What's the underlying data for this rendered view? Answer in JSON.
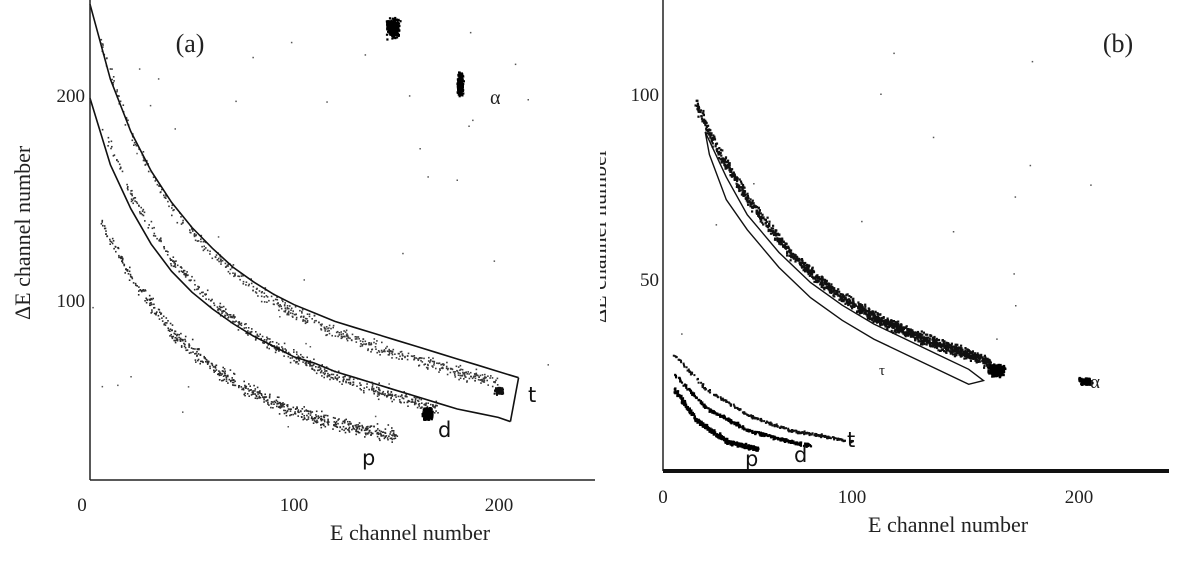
{
  "chart_data": [
    {
      "type": "scatter",
      "panel_label": "(a)",
      "xlabel": "E channel number",
      "ylabel": "ΔE channel number",
      "xlim": [
        0,
        245
      ],
      "ylim": [
        15,
        245
      ],
      "xticks": [
        0,
        100,
        200
      ],
      "yticks": [
        100,
        200
      ],
      "gate_curves": {
        "upper": [
          [
            0,
            243
          ],
          [
            10,
            207
          ],
          [
            20,
            182
          ],
          [
            30,
            163
          ],
          [
            40,
            148
          ],
          [
            50,
            136
          ],
          [
            60,
            126
          ],
          [
            70,
            117
          ],
          [
            80,
            110
          ],
          [
            90,
            104
          ],
          [
            100,
            99
          ],
          [
            110,
            95
          ],
          [
            120,
            91
          ],
          [
            130,
            88
          ],
          [
            140,
            85
          ],
          [
            150,
            82
          ],
          [
            160,
            79
          ],
          [
            170,
            76
          ],
          [
            180,
            73
          ],
          [
            190,
            70
          ],
          [
            200,
            67
          ],
          [
            210,
            64
          ]
        ],
        "lower": [
          [
            0,
            198
          ],
          [
            10,
            166
          ],
          [
            20,
            145
          ],
          [
            30,
            128
          ],
          [
            40,
            115
          ],
          [
            50,
            105
          ],
          [
            60,
            97
          ],
          [
            70,
            90
          ],
          [
            80,
            84
          ],
          [
            90,
            79
          ],
          [
            100,
            74
          ],
          [
            110,
            71
          ],
          [
            120,
            67
          ],
          [
            130,
            64
          ],
          [
            140,
            61
          ],
          [
            150,
            58
          ],
          [
            160,
            55
          ],
          [
            170,
            52
          ],
          [
            180,
            49
          ],
          [
            190,
            47
          ],
          [
            200,
            45
          ],
          [
            206,
            43
          ]
        ]
      },
      "series": [
        {
          "name": "t",
          "band": [
            [
              5,
              225
            ],
            [
              20,
              180
            ],
            [
              40,
              145
            ],
            [
              60,
              123
            ],
            [
              80,
              107
            ],
            [
              100,
              95
            ],
            [
              120,
              86
            ],
            [
              150,
              76
            ],
            [
              180,
              67
            ],
            [
              200,
              62
            ]
          ],
          "cluster": {
            "x": 200,
            "y": 58
          }
        },
        {
          "name": "d",
          "band": [
            [
              5,
              185
            ],
            [
              20,
              152
            ],
            [
              40,
              120
            ],
            [
              60,
              100
            ],
            [
              80,
              85
            ],
            [
              100,
              74
            ],
            [
              120,
              65
            ],
            [
              150,
              55
            ],
            [
              170,
              49
            ]
          ],
          "cluster": {
            "x": 165,
            "y": 47
          }
        },
        {
          "name": "p",
          "band": [
            [
              5,
              140
            ],
            [
              20,
              112
            ],
            [
              40,
              86
            ],
            [
              60,
              69
            ],
            [
              80,
              57
            ],
            [
              100,
              48
            ],
            [
              120,
              42
            ],
            [
              140,
              38
            ],
            [
              150,
              36
            ]
          ]
        },
        {
          "name": "α",
          "clusters": [
            {
              "x": 148,
              "y": 232
            },
            {
              "x": 181,
              "y": 205
            }
          ]
        }
      ],
      "labels": {
        "t": "t",
        "d": "d",
        "p": "p",
        "alpha": "α"
      }
    },
    {
      "type": "scatter",
      "panel_label": "(b)",
      "xlabel": "E channel number",
      "ylabel": "ΔE channel number",
      "xlim": [
        0,
        240
      ],
      "ylim": [
        0,
        125
      ],
      "xticks": [
        0,
        100,
        200
      ],
      "yticks": [
        50,
        100
      ],
      "gate_curve": [
        [
          20,
          90
        ],
        [
          30,
          78
        ],
        [
          40,
          68
        ],
        [
          55,
          58
        ],
        [
          70,
          50
        ],
        [
          85,
          44
        ],
        [
          100,
          39
        ],
        [
          115,
          35
        ],
        [
          130,
          31
        ],
        [
          145,
          27
        ],
        [
          152,
          24
        ],
        [
          145,
          23
        ],
        [
          130,
          27
        ],
        [
          115,
          31
        ],
        [
          100,
          35
        ],
        [
          85,
          40
        ],
        [
          70,
          46
        ],
        [
          55,
          54
        ],
        [
          40,
          64
        ],
        [
          30,
          72
        ],
        [
          22,
          84
        ],
        [
          20,
          90
        ]
      ],
      "series": [
        {
          "name": "t",
          "band": [
            [
              15,
              98
            ],
            [
              25,
              86
            ],
            [
              40,
              72
            ],
            [
              60,
              58
            ],
            [
              80,
              48
            ],
            [
              100,
              41
            ],
            [
              120,
              36
            ],
            [
              140,
              32
            ],
            [
              155,
              29
            ]
          ],
          "cluster": {
            "x": 158,
            "y": 27
          },
          "low_band": [
            [
              5,
              31
            ],
            [
              20,
              22
            ],
            [
              40,
              15
            ],
            [
              60,
              11
            ],
            [
              80,
              9
            ],
            [
              90,
              8
            ]
          ]
        },
        {
          "name": "d",
          "low_band": [
            [
              5,
              26
            ],
            [
              20,
              17
            ],
            [
              40,
              11
            ],
            [
              60,
              8
            ],
            [
              70,
              7
            ]
          ]
        },
        {
          "name": "p",
          "low_band": [
            [
              5,
              22
            ],
            [
              15,
              14
            ],
            [
              30,
              8
            ],
            [
              45,
              6
            ]
          ]
        },
        {
          "name": "α",
          "cluster": {
            "x": 200,
            "y": 24
          }
        }
      ],
      "labels": {
        "t": "t",
        "d": "d",
        "p": "p",
        "alpha": "α",
        "tau": "τ"
      }
    }
  ]
}
